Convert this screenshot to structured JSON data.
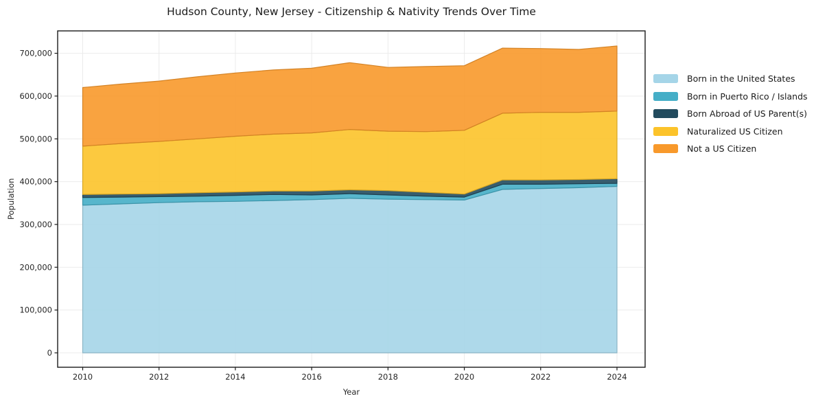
{
  "chart_data": {
    "type": "area",
    "stacked": true,
    "title": "Hudson County, New Jersey - Citizenship & Nativity Trends Over Time",
    "xlabel": "Year",
    "ylabel": "Population",
    "x": [
      2010,
      2011,
      2012,
      2013,
      2014,
      2015,
      2016,
      2017,
      2018,
      2019,
      2020,
      2021,
      2022,
      2023,
      2024
    ],
    "x_tick_years": [
      2010,
      2012,
      2014,
      2016,
      2018,
      2020,
      2022,
      2024
    ],
    "y_ticks": [
      0,
      100000,
      200000,
      300000,
      400000,
      500000,
      600000,
      700000
    ],
    "ylim": [
      -26000,
      758000
    ],
    "grid": true,
    "legend_position": "right-outside",
    "background_color": "#ffffff",
    "axis_color": "#1a1a1a",
    "grid_color": "#ebebeb",
    "series": [
      {
        "name": "Born in the United States",
        "color": "#a5d5e8",
        "values": [
          345000,
          348000,
          351000,
          353000,
          354000,
          356000,
          358000,
          361000,
          359000,
          358000,
          357000,
          382000,
          384000,
          386000,
          389000
        ]
      },
      {
        "name": "Born in Puerto Rico / Islands",
        "color": "#45aec7",
        "values": [
          18000,
          16000,
          14000,
          13000,
          14000,
          14000,
          11000,
          11000,
          10000,
          8000,
          7000,
          12000,
          10000,
          9000,
          7000
        ]
      },
      {
        "name": "Born Abroad of US Parent(s)",
        "color": "#224b5e",
        "values": [
          7000,
          7000,
          7000,
          8000,
          8000,
          8000,
          9000,
          9000,
          10000,
          9000,
          7000,
          10000,
          10000,
          10000,
          11000
        ]
      },
      {
        "name": "Naturalized US Citizen",
        "color": "#fcc32a",
        "values": [
          113000,
          118000,
          122000,
          126000,
          130000,
          133000,
          136000,
          141000,
          139000,
          142000,
          149000,
          156000,
          158000,
          157000,
          158000
        ]
      },
      {
        "name": "Not a US Citizen",
        "color": "#f8992b",
        "values": [
          137000,
          139000,
          141000,
          145000,
          148000,
          150000,
          151000,
          156000,
          149000,
          152000,
          151000,
          152000,
          149000,
          147000,
          152000
        ]
      }
    ],
    "totals": [
      620000,
      628000,
      635000,
      645000,
      654000,
      661000,
      665000,
      678000,
      667000,
      669000,
      671000,
      712000,
      711000,
      709000,
      717000
    ]
  }
}
